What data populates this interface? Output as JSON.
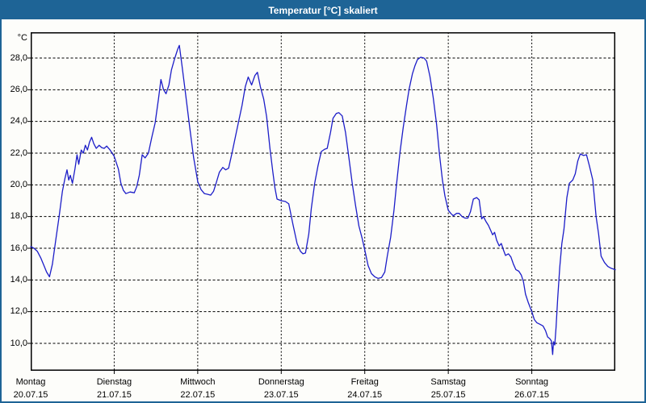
{
  "window": {
    "title": "Temperatur [°C] skaliert"
  },
  "theme": {
    "frame_color": "#1e6496",
    "title_text_color": "#ffffff",
    "content_bg": "#fdfdfa",
    "grid_color": "#000000",
    "axis_color": "#000000",
    "label_color": "#000000",
    "line_color": "#1c1dc8"
  },
  "chart_data": {
    "type": "line",
    "title": "Temperatur [°C] skaliert",
    "grid": "dashed",
    "legend": "none",
    "y_axis": {
      "unit": "°C",
      "min": 10,
      "max": 28,
      "step": 2,
      "tick_labels": [
        "28,0",
        "26,0",
        "24,0",
        "22,0",
        "20,0",
        "18,0",
        "16,0",
        "14,0",
        "12,0",
        "10,0"
      ]
    },
    "x_axis": {
      "days": [
        {
          "name": "Montag",
          "date": "20.07.15"
        },
        {
          "name": "Dienstag",
          "date": "21.07.15"
        },
        {
          "name": "Mittwoch",
          "date": "22.07.15"
        },
        {
          "name": "Donnerstag",
          "date": "23.07.15"
        },
        {
          "name": "Freitag",
          "date": "24.07.15"
        },
        {
          "name": "Samstag",
          "date": "25.07.15"
        },
        {
          "name": "Sonntag",
          "date": "26.07.15"
        }
      ]
    },
    "series": [
      {
        "name": "Temperatur [°C]",
        "color": "#1c1dc8",
        "points": [
          [
            0.0,
            16.1
          ],
          [
            0.04,
            16.0
          ],
          [
            0.08,
            15.8
          ],
          [
            0.12,
            15.4
          ],
          [
            0.16,
            14.9
          ],
          [
            0.19,
            14.5
          ],
          [
            0.225,
            14.2
          ],
          [
            0.26,
            15.0
          ],
          [
            0.3,
            16.5
          ],
          [
            0.34,
            18.0
          ],
          [
            0.38,
            19.6
          ],
          [
            0.41,
            20.4
          ],
          [
            0.435,
            20.95
          ],
          [
            0.455,
            20.3
          ],
          [
            0.475,
            20.6
          ],
          [
            0.5,
            20.1
          ],
          [
            0.53,
            21.0
          ],
          [
            0.555,
            21.9
          ],
          [
            0.575,
            21.3
          ],
          [
            0.605,
            22.2
          ],
          [
            0.63,
            22.0
          ],
          [
            0.655,
            22.5
          ],
          [
            0.68,
            22.2
          ],
          [
            0.705,
            22.7
          ],
          [
            0.73,
            23.0
          ],
          [
            0.755,
            22.6
          ],
          [
            0.785,
            22.3
          ],
          [
            0.82,
            22.5
          ],
          [
            0.85,
            22.35
          ],
          [
            0.88,
            22.3
          ],
          [
            0.91,
            22.45
          ],
          [
            0.95,
            22.2
          ],
          [
            1.0,
            21.8
          ],
          [
            1.05,
            21.0
          ],
          [
            1.08,
            20.1
          ],
          [
            1.11,
            19.65
          ],
          [
            1.14,
            19.45
          ],
          [
            1.19,
            19.55
          ],
          [
            1.24,
            19.5
          ],
          [
            1.27,
            19.9
          ],
          [
            1.3,
            20.6
          ],
          [
            1.335,
            21.9
          ],
          [
            1.37,
            21.7
          ],
          [
            1.41,
            22.0
          ],
          [
            1.45,
            23.0
          ],
          [
            1.49,
            23.9
          ],
          [
            1.53,
            25.4
          ],
          [
            1.56,
            26.65
          ],
          [
            1.59,
            26.0
          ],
          [
            1.62,
            25.75
          ],
          [
            1.655,
            26.3
          ],
          [
            1.685,
            27.25
          ],
          [
            1.72,
            27.9
          ],
          [
            1.76,
            28.55
          ],
          [
            1.78,
            28.8
          ],
          [
            1.81,
            27.6
          ],
          [
            1.855,
            25.7
          ],
          [
            1.905,
            23.6
          ],
          [
            1.95,
            21.75
          ],
          [
            2.0,
            20.2
          ],
          [
            2.04,
            19.7
          ],
          [
            2.08,
            19.45
          ],
          [
            2.12,
            19.4
          ],
          [
            2.155,
            19.35
          ],
          [
            2.19,
            19.6
          ],
          [
            2.22,
            20.1
          ],
          [
            2.26,
            20.8
          ],
          [
            2.3,
            21.1
          ],
          [
            2.335,
            20.95
          ],
          [
            2.37,
            21.05
          ],
          [
            2.41,
            22.0
          ],
          [
            2.45,
            23.0
          ],
          [
            2.49,
            24.0
          ],
          [
            2.53,
            25.0
          ],
          [
            2.57,
            26.2
          ],
          [
            2.605,
            26.8
          ],
          [
            2.645,
            26.3
          ],
          [
            2.685,
            26.9
          ],
          [
            2.715,
            27.1
          ],
          [
            2.75,
            26.2
          ],
          [
            2.79,
            25.4
          ],
          [
            2.825,
            24.3
          ],
          [
            2.865,
            22.3
          ],
          [
            2.9,
            20.8
          ],
          [
            2.925,
            19.8
          ],
          [
            2.95,
            19.1
          ],
          [
            3.0,
            19.0
          ],
          [
            3.05,
            18.95
          ],
          [
            3.09,
            18.8
          ],
          [
            3.14,
            17.5
          ],
          [
            3.19,
            16.3
          ],
          [
            3.23,
            15.8
          ],
          [
            3.26,
            15.65
          ],
          [
            3.29,
            15.7
          ],
          [
            3.33,
            16.9
          ],
          [
            3.36,
            18.5
          ],
          [
            3.4,
            20.1
          ],
          [
            3.44,
            21.2
          ],
          [
            3.48,
            22.1
          ],
          [
            3.52,
            22.25
          ],
          [
            3.55,
            22.3
          ],
          [
            3.59,
            23.3
          ],
          [
            3.62,
            24.2
          ],
          [
            3.66,
            24.5
          ],
          [
            3.69,
            24.55
          ],
          [
            3.73,
            24.35
          ],
          [
            3.77,
            23.3
          ],
          [
            3.81,
            21.7
          ],
          [
            3.85,
            20.1
          ],
          [
            3.89,
            18.7
          ],
          [
            3.93,
            17.4
          ],
          [
            3.97,
            16.6
          ],
          [
            4.0,
            15.9
          ],
          [
            4.04,
            14.9
          ],
          [
            4.08,
            14.4
          ],
          [
            4.12,
            14.2
          ],
          [
            4.16,
            14.1
          ],
          [
            4.2,
            14.15
          ],
          [
            4.24,
            14.5
          ],
          [
            4.27,
            15.5
          ],
          [
            4.31,
            16.7
          ],
          [
            4.35,
            18.4
          ],
          [
            4.38,
            20.0
          ],
          [
            4.42,
            22.0
          ],
          [
            4.46,
            23.6
          ],
          [
            4.5,
            25.0
          ],
          [
            4.53,
            26.0
          ],
          [
            4.57,
            27.0
          ],
          [
            4.6,
            27.5
          ],
          [
            4.63,
            27.9
          ],
          [
            4.67,
            28.05
          ],
          [
            4.71,
            28.0
          ],
          [
            4.74,
            27.8
          ],
          [
            4.78,
            26.85
          ],
          [
            4.82,
            25.5
          ],
          [
            4.86,
            23.8
          ],
          [
            4.895,
            21.9
          ],
          [
            4.93,
            20.3
          ],
          [
            4.96,
            19.3
          ],
          [
            5.0,
            18.4
          ],
          [
            5.03,
            18.2
          ],
          [
            5.06,
            18.05
          ],
          [
            5.1,
            18.2
          ],
          [
            5.13,
            18.2
          ],
          [
            5.165,
            18.0
          ],
          [
            5.2,
            17.9
          ],
          [
            5.235,
            17.9
          ],
          [
            5.265,
            18.3
          ],
          [
            5.3,
            19.1
          ],
          [
            5.34,
            19.2
          ],
          [
            5.37,
            19.05
          ],
          [
            5.4,
            17.85
          ],
          [
            5.42,
            18.0
          ],
          [
            5.45,
            17.7
          ],
          [
            5.48,
            17.45
          ],
          [
            5.51,
            17.1
          ],
          [
            5.53,
            16.85
          ],
          [
            5.555,
            17.0
          ],
          [
            5.58,
            16.5
          ],
          [
            5.61,
            16.15
          ],
          [
            5.635,
            16.3
          ],
          [
            5.66,
            15.9
          ],
          [
            5.685,
            15.55
          ],
          [
            5.72,
            15.65
          ],
          [
            5.75,
            15.45
          ],
          [
            5.78,
            15.0
          ],
          [
            5.81,
            14.65
          ],
          [
            5.845,
            14.55
          ],
          [
            5.875,
            14.3
          ],
          [
            5.9,
            13.9
          ],
          [
            5.925,
            13.1
          ],
          [
            5.96,
            12.55
          ],
          [
            6.0,
            12.0
          ],
          [
            6.03,
            11.5
          ],
          [
            6.06,
            11.3
          ],
          [
            6.1,
            11.2
          ],
          [
            6.135,
            11.1
          ],
          [
            6.165,
            10.8
          ],
          [
            6.19,
            10.4
          ],
          [
            6.215,
            10.3
          ],
          [
            6.235,
            10.15
          ],
          [
            6.25,
            9.3
          ],
          [
            6.26,
            10.1
          ],
          [
            6.275,
            9.9
          ],
          [
            6.29,
            11.0
          ],
          [
            6.31,
            12.8
          ],
          [
            6.335,
            14.8
          ],
          [
            6.36,
            16.3
          ],
          [
            6.385,
            17.2
          ],
          [
            6.42,
            19.2
          ],
          [
            6.45,
            20.1
          ],
          [
            6.49,
            20.3
          ],
          [
            6.52,
            20.7
          ],
          [
            6.55,
            21.5
          ],
          [
            6.58,
            21.95
          ],
          [
            6.62,
            21.85
          ],
          [
            6.655,
            21.9
          ],
          [
            6.69,
            21.2
          ],
          [
            6.73,
            20.3
          ],
          [
            6.77,
            18.0
          ],
          [
            6.8,
            16.9
          ],
          [
            6.83,
            15.5
          ],
          [
            6.87,
            15.1
          ],
          [
            6.91,
            14.85
          ],
          [
            6.945,
            14.75
          ],
          [
            7.0,
            14.65
          ]
        ]
      }
    ]
  }
}
